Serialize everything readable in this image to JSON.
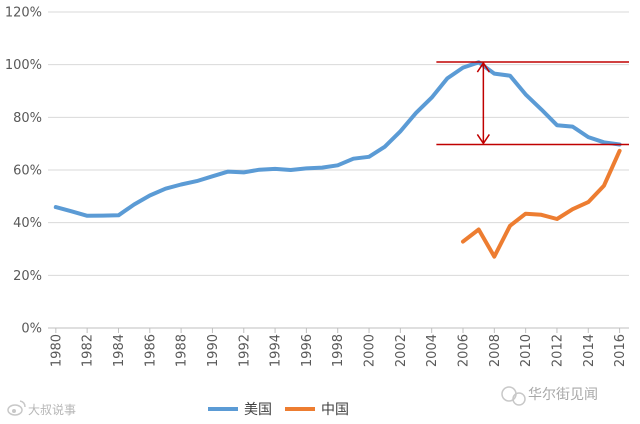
{
  "chart_data": {
    "type": "line",
    "x": [
      1980,
      1981,
      1982,
      1983,
      1984,
      1985,
      1986,
      1987,
      1988,
      1989,
      1990,
      1991,
      1992,
      1993,
      1994,
      1995,
      1996,
      1997,
      1998,
      1999,
      2000,
      2001,
      2002,
      2003,
      2004,
      2005,
      2006,
      2007,
      2008,
      2009,
      2010,
      2011,
      2012,
      2013,
      2014,
      2015,
      2016
    ],
    "xticks": [
      1980,
      1982,
      1984,
      1986,
      1988,
      1990,
      1992,
      1994,
      1996,
      1998,
      2000,
      2002,
      2004,
      2006,
      2008,
      2010,
      2012,
      2014,
      2016
    ],
    "xlim": [
      1979.5,
      2016.6
    ],
    "ylim": [
      0,
      120
    ],
    "yticks": [
      0,
      20,
      40,
      60,
      80,
      100,
      120
    ],
    "ytick_labels": [
      "0%",
      "20%",
      "40%",
      "60%",
      "80%",
      "100%",
      "120%"
    ],
    "grid": "horizontal",
    "legend": "bottom",
    "series": [
      {
        "name": "美国",
        "color": "#5B9BD5",
        "values": [
          45.9,
          44.3,
          42.6,
          42.7,
          42.8,
          46.9,
          50.3,
          52.9,
          54.5,
          55.8,
          57.6,
          59.4,
          59.1,
          60.1,
          60.4,
          60.0,
          60.6,
          60.9,
          61.8,
          64.3,
          65.0,
          68.8,
          74.7,
          81.7,
          87.5,
          94.8,
          98.9,
          100.9,
          96.6,
          95.8,
          88.7,
          83.0,
          77.0,
          76.5,
          72.5,
          70.5,
          69.7
        ]
      },
      {
        "name": "中国",
        "color": "#ED7D31",
        "values": [
          null,
          null,
          null,
          null,
          null,
          null,
          null,
          null,
          null,
          null,
          null,
          null,
          null,
          null,
          null,
          null,
          null,
          null,
          null,
          null,
          null,
          null,
          null,
          null,
          null,
          null,
          32.8,
          37.4,
          27.1,
          38.8,
          43.4,
          43.0,
          41.4,
          45.1,
          47.8,
          54.0,
          67.3
        ]
      }
    ],
    "annotation": {
      "color": "#C00000",
      "top_line": {
        "value": 101,
        "x_from": 2004.3,
        "x_to": 2016.6
      },
      "bottom_line": {
        "value": 69.7,
        "x_from": 2004.3,
        "x_to": 2016.6
      },
      "arrow_x": 2007.3
    }
  },
  "watermarks": {
    "left": "大叔说事",
    "right": "华尔街见闻"
  }
}
